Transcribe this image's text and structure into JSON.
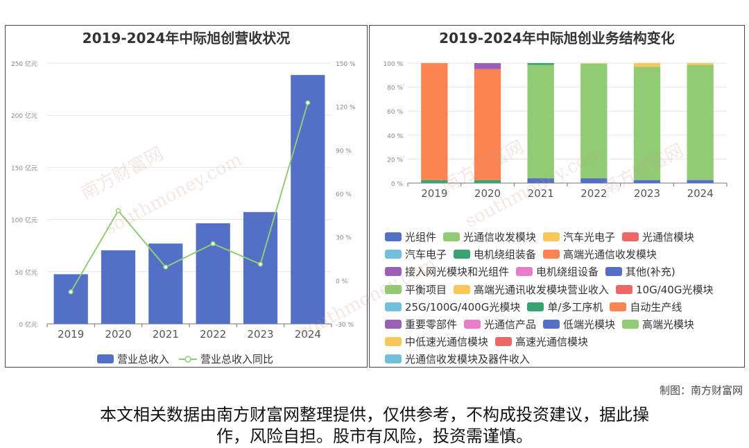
{
  "credit": "制图：南方财富网",
  "disclaimer": {
    "line1": "本文相关数据由南方财富网整理提供，仅供参考，不构成投资建议，据此操",
    "line2": "作，风险自担。股市有风险，投资需谨慎。"
  },
  "watermark": {
    "brand": "南方财富网",
    "site": "southmoney.com"
  },
  "chart_data": [
    {
      "type": "bar",
      "title": "2019-2024年中际旭创营收状况",
      "categories": [
        "2019",
        "2020",
        "2021",
        "2022",
        "2023",
        "2024"
      ],
      "left_axis": {
        "ylim": [
          0,
          250
        ],
        "ticks": [
          "0 亿元",
          "50 亿元",
          "100 亿元",
          "150 亿元",
          "200 亿元",
          "250 亿元"
        ]
      },
      "right_axis": {
        "ylim": [
          -30,
          150
        ],
        "ticks": [
          "-30 %",
          "0 %",
          "30 %",
          "60 %",
          "90 %",
          "120 %",
          "150 %"
        ]
      },
      "series": [
        {
          "name": "营业总收入",
          "type": "bar",
          "axis": "left",
          "color": "#5470c6",
          "values": [
            47.6,
            70.5,
            77.0,
            96.4,
            107.2,
            238.6
          ]
        },
        {
          "name": "营业总收入同比",
          "type": "line",
          "axis": "right",
          "color": "#91cc75",
          "values": [
            -7.9,
            48.1,
            9.2,
            25.3,
            11.2,
            122.6
          ]
        }
      ],
      "grid": true,
      "legend": "bottom"
    },
    {
      "type": "bar",
      "stacked": true,
      "title": "2019-2024年中际旭创业务结构变化",
      "categories": [
        "2019",
        "2020",
        "2021",
        "2022",
        "2023",
        "2024"
      ],
      "ylim": [
        0,
        100
      ],
      "ticks": [
        "0 %",
        "20 %",
        "40 %",
        "60 %",
        "80 %",
        "100 %"
      ],
      "legend": "bottom",
      "legend_entries": [
        {
          "name": "光组件",
          "color": "#5470c6"
        },
        {
          "name": "光通信收发模块",
          "color": "#91cc75"
        },
        {
          "name": "汽车光电子",
          "color": "#fac858"
        },
        {
          "name": "光通信模块",
          "color": "#ee6666"
        },
        {
          "name": "汽车电子",
          "color": "#73c0de"
        },
        {
          "name": "电机绕组装备",
          "color": "#3ba272"
        },
        {
          "name": "高端光通信收发模块",
          "color": "#fc8452"
        },
        {
          "name": "接入网光模块和光组件",
          "color": "#9a60b4"
        },
        {
          "name": "电机绕组设备",
          "color": "#ea7ccc"
        },
        {
          "name": "其他(补充)",
          "color": "#5470c6"
        },
        {
          "name": "平衡项目",
          "color": "#91cc75"
        },
        {
          "name": "高端光通讯收发模块营业收入",
          "color": "#fac858"
        },
        {
          "name": "10G/40G光模块",
          "color": "#ee6666"
        },
        {
          "name": "25G/100G/400G光模块",
          "color": "#73c0de"
        },
        {
          "name": "单/多工序机",
          "color": "#3ba272"
        },
        {
          "name": "自动生产线",
          "color": "#fc8452"
        },
        {
          "name": "重要零部件",
          "color": "#9a60b4"
        },
        {
          "name": "光通信产品",
          "color": "#ea7ccc"
        },
        {
          "name": "低端光模块",
          "color": "#5470c6"
        },
        {
          "name": "高端光模块",
          "color": "#91cc75"
        },
        {
          "name": "中低速光通信模块",
          "color": "#fac858"
        },
        {
          "name": "高速光通信模块",
          "color": "#ee6666"
        },
        {
          "name": "光通信收发模块及器件收入",
          "color": "#73c0de"
        }
      ],
      "stacks": [
        {
          "category": "2019",
          "segments": [
            {
              "name": "电机绕组装备",
              "color": "#3ba272",
              "value": 2.5
            },
            {
              "name": "高端光通信收发模块",
              "color": "#fc8452",
              "value": 97.5
            }
          ]
        },
        {
          "category": "2020",
          "segments": [
            {
              "name": "电机绕组装备",
              "color": "#3ba272",
              "value": 2.5
            },
            {
              "name": "高端光通信收发模块",
              "color": "#fc8452",
              "value": 92.5
            },
            {
              "name": "接入网光模块和光组件",
              "color": "#9a60b4",
              "value": 5.0
            }
          ]
        },
        {
          "category": "2021",
          "segments": [
            {
              "name": "光组件",
              "color": "#5470c6",
              "value": 4.0
            },
            {
              "name": "光通信收发模块",
              "color": "#91cc75",
              "value": 94.5
            },
            {
              "name": "电机绕组装备",
              "color": "#3ba272",
              "value": 1.5
            }
          ]
        },
        {
          "category": "2022",
          "segments": [
            {
              "name": "光组件",
              "color": "#5470c6",
              "value": 4.0
            },
            {
              "name": "光通信收发模块",
              "color": "#91cc75",
              "value": 95.5
            },
            {
              "name": "汽车光电子",
              "color": "#fac858",
              "value": 0.5
            }
          ]
        },
        {
          "category": "2023",
          "segments": [
            {
              "name": "光组件",
              "color": "#5470c6",
              "value": 2.5
            },
            {
              "name": "光通信收发模块",
              "color": "#91cc75",
              "value": 94.5
            },
            {
              "name": "汽车光电子",
              "color": "#fac858",
              "value": 3.0
            }
          ]
        },
        {
          "category": "2024",
          "segments": [
            {
              "name": "光组件",
              "color": "#5470c6",
              "value": 2.5
            },
            {
              "name": "光通信收发模块",
              "color": "#91cc75",
              "value": 96.0
            },
            {
              "name": "汽车光电子",
              "color": "#fac858",
              "value": 1.5
            }
          ]
        }
      ]
    }
  ]
}
